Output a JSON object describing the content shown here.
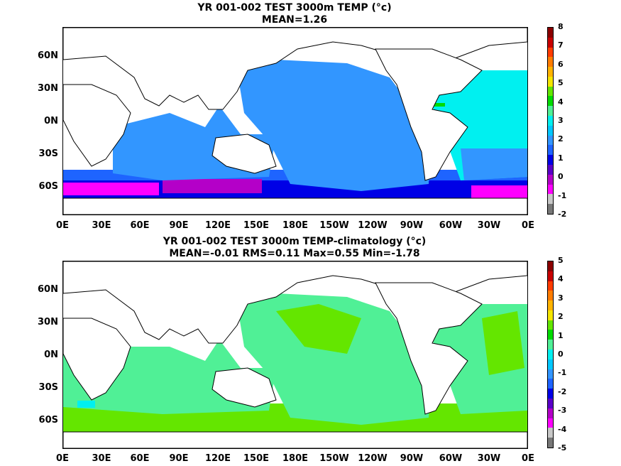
{
  "panel1": {
    "title_line1": "YR 001-002 TEST 3000m TEMP (°c)",
    "title_line2": "MEAN=1.26",
    "colorbar_labels": [
      "8",
      "7",
      "6",
      "5",
      "4",
      "3",
      "2",
      "1",
      "0",
      "-1",
      "-2"
    ],
    "colorbar_colors": [
      "#8b0000",
      "#c80000",
      "#ff3c00",
      "#ff7d00",
      "#ffb400",
      "#f5e600",
      "#64e600",
      "#00dc00",
      "#50f096",
      "#00f0f0",
      "#00c8ff",
      "#3296ff",
      "#1e64ff",
      "#0000e6",
      "#5a00c8",
      "#b400c8",
      "#ff00ff",
      "#c8c8c8",
      "#787878"
    ]
  },
  "panel2": {
    "title_line1": "YR 001-002 TEST 3000m TEMP-climatology (°c)",
    "title_line2": "MEAN=-0.01   RMS=0.11   Max=0.55   Min=-1.78",
    "colorbar_labels": [
      "5",
      "4",
      "3",
      "2",
      "1",
      "0",
      "-1",
      "-2",
      "-3",
      "-4",
      "-5"
    ],
    "colorbar_colors": [
      "#8b0000",
      "#c80000",
      "#ff3c00",
      "#ff7d00",
      "#ffb400",
      "#f5e600",
      "#64e600",
      "#00dc00",
      "#50f096",
      "#00f0f0",
      "#00c8ff",
      "#3296ff",
      "#1e64ff",
      "#0000e6",
      "#5a00c8",
      "#b400c8",
      "#ff00ff",
      "#c8c8c8",
      "#787878"
    ]
  },
  "x_tick_labels": [
    "0E",
    "30E",
    "60E",
    "90E",
    "120E",
    "150E",
    "180E",
    "150W",
    "120W",
    "90W",
    "60W",
    "30W",
    "0E"
  ],
  "y_tick_labels": [
    "60N",
    "30N",
    "0N",
    "30S",
    "60S"
  ]
}
